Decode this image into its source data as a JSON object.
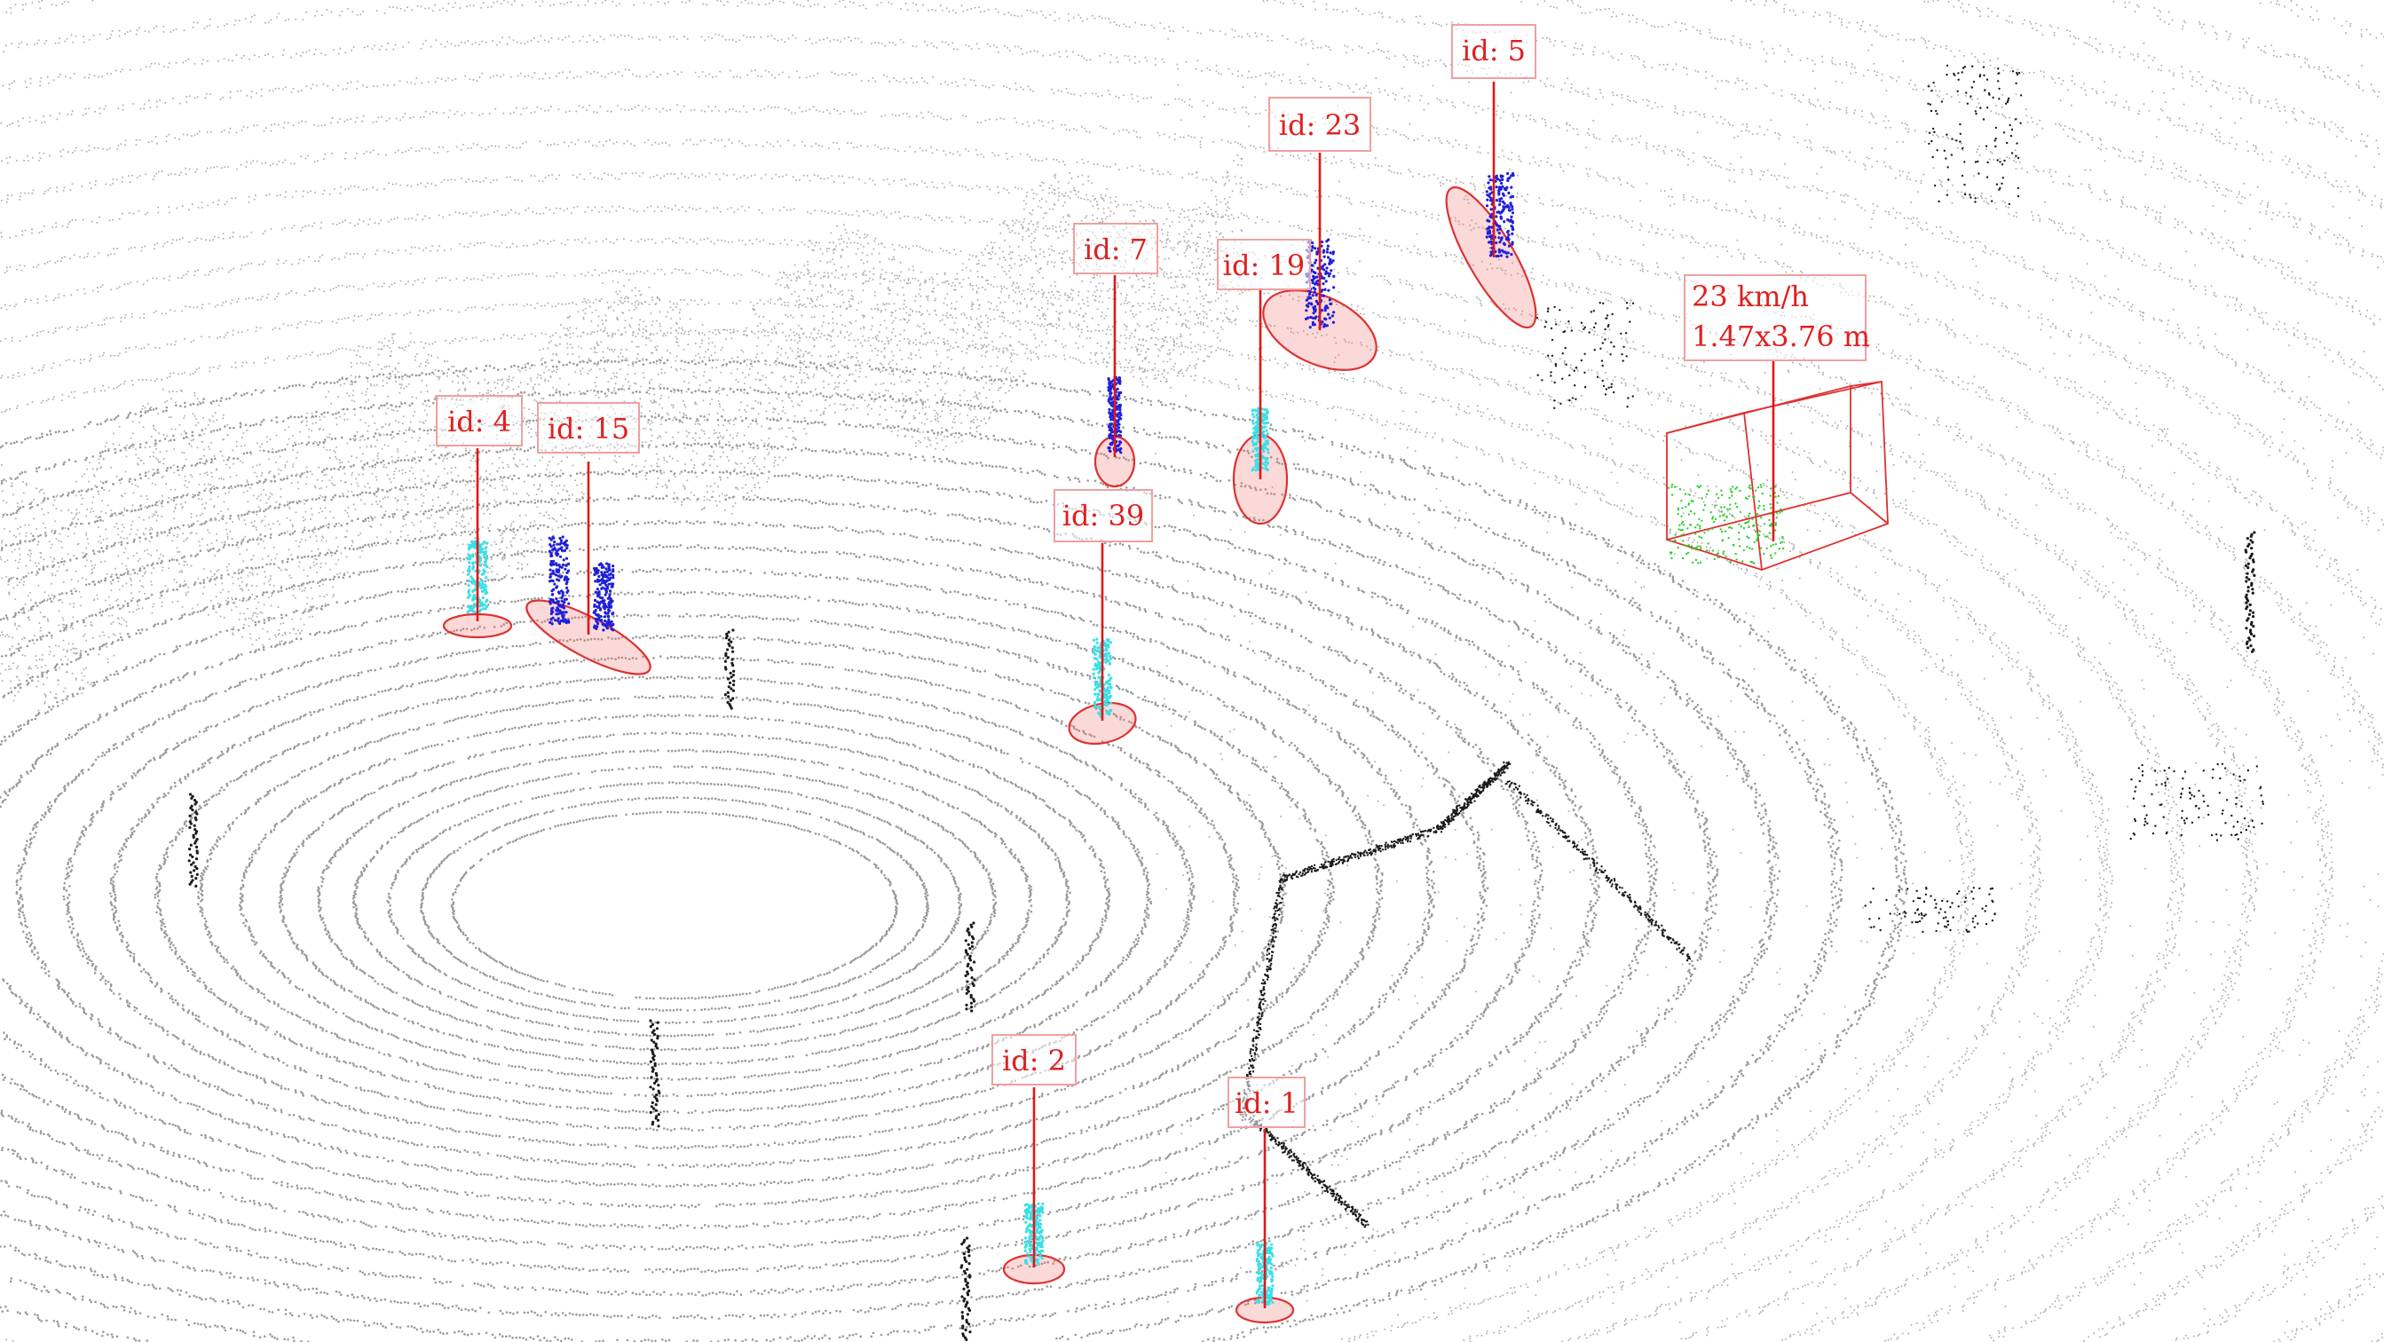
{
  "scene": {
    "type": "lidar point cloud with tracked objects",
    "colors": {
      "ground_rings": "#9a9a9a",
      "background_points": "#b0b0b0",
      "poles": "#1a1a1a",
      "pedestrian_cyan": "#38e0e8",
      "pedestrian_blue": "#2020d8",
      "vehicle_green": "#30d030",
      "annotation_red": "#e02020"
    }
  },
  "tracks": [
    {
      "id_label": "id: 4",
      "class": "pedestrian",
      "color": "cyan"
    },
    {
      "id_label": "id: 15",
      "class": "pedestrian",
      "color": "blue"
    },
    {
      "id_label": "id: 7",
      "class": "pedestrian",
      "color": "blue"
    },
    {
      "id_label": "id: 19",
      "class": "pedestrian",
      "color": "cyan"
    },
    {
      "id_label": "id: 23",
      "class": "pedestrian",
      "color": "blue"
    },
    {
      "id_label": "id: 5",
      "class": "pedestrian",
      "color": "blue"
    },
    {
      "id_label": "id: 39",
      "class": "pedestrian",
      "color": "cyan"
    },
    {
      "id_label": "id: 2",
      "class": "pedestrian",
      "color": "cyan"
    },
    {
      "id_label": "id: 1",
      "class": "pedestrian",
      "color": "cyan"
    }
  ],
  "vehicle": {
    "speed": "23 km/h",
    "dimensions": "1.47x3.76 m",
    "color": "green"
  }
}
